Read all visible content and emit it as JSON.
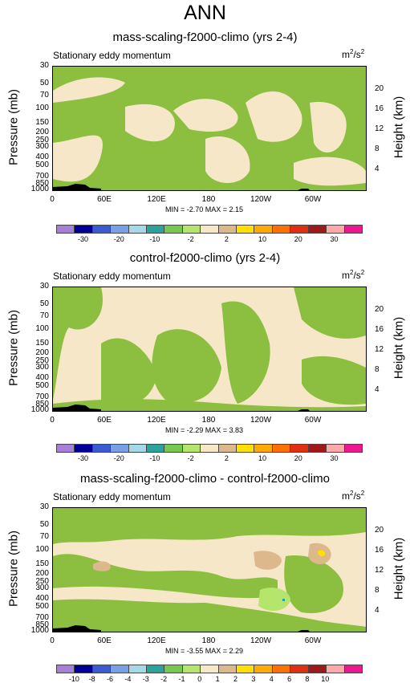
{
  "main_title": "ANN",
  "panels": [
    {
      "title": "mass-scaling-f2000-climo (yrs 2-4)",
      "left_label": "Stationary eddy momentum",
      "units_base": "m",
      "units_sup1": "2",
      "units_mid": "/s",
      "units_sup2": "2",
      "minmax": "MIN = -2.70  MAX =  2.15",
      "ylabel": "Pressure (mb)",
      "ylabel_right": "Height (km)",
      "pressure_ticks": [
        "30",
        "50",
        "70",
        "100",
        "150",
        "200",
        "250",
        "300",
        "400",
        "500",
        "700",
        "850",
        "1000"
      ],
      "height_ticks": [
        "20",
        "16",
        "12",
        "8",
        "4"
      ],
      "lon_ticks": [
        "0",
        "60E",
        "120E",
        "180",
        "120W",
        "60W"
      ],
      "colorbar_labels": [
        "-30",
        "-20",
        "-10",
        "-2",
        "2",
        "10",
        "20",
        "30"
      ]
    },
    {
      "title": "control-f2000-climo (yrs 2-4)",
      "left_label": "Stationary eddy momentum",
      "units_base": "m",
      "units_sup1": "2",
      "units_mid": "/s",
      "units_sup2": "2",
      "minmax": "MIN = -2.29  MAX =  3.83",
      "ylabel": "Pressure (mb)",
      "ylabel_right": "Height (km)",
      "pressure_ticks": [
        "30",
        "50",
        "70",
        "100",
        "150",
        "200",
        "250",
        "300",
        "400",
        "500",
        "700",
        "850",
        "1000"
      ],
      "height_ticks": [
        "20",
        "16",
        "12",
        "8",
        "4"
      ],
      "lon_ticks": [
        "0",
        "60E",
        "120E",
        "180",
        "120W",
        "60W"
      ],
      "colorbar_labels": [
        "-30",
        "-20",
        "-10",
        "-2",
        "2",
        "10",
        "20",
        "30"
      ]
    },
    {
      "title": "mass-scaling-f2000-climo - control-f2000-climo",
      "left_label": "Stationary eddy momentum",
      "units_base": "m",
      "units_sup1": "2",
      "units_mid": "/s",
      "units_sup2": "2",
      "minmax": "MIN = -3.55  MAX =  2.29",
      "ylabel": "Pressure (mb)",
      "ylabel_right": "Height (km)",
      "pressure_ticks": [
        "30",
        "50",
        "70",
        "100",
        "150",
        "200",
        "250",
        "300",
        "400",
        "500",
        "700",
        "850",
        "1000"
      ],
      "height_ticks": [
        "20",
        "16",
        "12",
        "8",
        "4"
      ],
      "lon_ticks": [
        "0",
        "60E",
        "120E",
        "180",
        "120W",
        "60W"
      ],
      "colorbar_labels": [
        "-10",
        "-8",
        "-6",
        "-4",
        "-3",
        "-2",
        "-1",
        "0",
        "1",
        "2",
        "3",
        "4",
        "6",
        "8",
        "10"
      ]
    }
  ],
  "colors": {
    "cbar_test": [
      "#a57fd8",
      "#000099",
      "#3c5ad2",
      "#78a0e6",
      "#a6d9e6",
      "#2aa49a",
      "#78c850",
      "#b6e56e",
      "#f6e7c8",
      "#ddb88c",
      "#ffe000",
      "#ffaa00",
      "#ff7000",
      "#e03010",
      "#a01818",
      "#ffaaaa",
      "#f01890"
    ],
    "cbar_diff": [
      "#a57fd8",
      "#000099",
      "#3c5ad2",
      "#78a0e6",
      "#a6d9e6",
      "#2aa49a",
      "#78c850",
      "#b6e56e",
      "#f6e7c8",
      "#ddb88c",
      "#ffe000",
      "#ffaa00",
      "#ff7000",
      "#e03010",
      "#a01818",
      "#ffaaaa",
      "#f01890"
    ],
    "green": "#8cbf3f",
    "beige": "#f6e7c8"
  },
  "chart_data": [
    {
      "type": "heatmap",
      "title": "mass-scaling-f2000-climo (yrs 2-4)",
      "xlabel": "",
      "ylabel": "Pressure (mb)",
      "y_right_label": "Height (km)",
      "xlim": [
        0,
        360
      ],
      "ylim_pressure_mb": [
        1000,
        30
      ],
      "levels": [
        -30,
        -20,
        -10,
        -2,
        2,
        10,
        20,
        30
      ],
      "min": -2.7,
      "max": 2.15
    },
    {
      "type": "heatmap",
      "title": "control-f2000-climo (yrs 2-4)",
      "xlabel": "",
      "ylabel": "Pressure (mb)",
      "y_right_label": "Height (km)",
      "xlim": [
        0,
        360
      ],
      "ylim_pressure_mb": [
        1000,
        30
      ],
      "levels": [
        -30,
        -20,
        -10,
        -2,
        2,
        10,
        20,
        30
      ],
      "min": -2.29,
      "max": 3.83
    },
    {
      "type": "heatmap",
      "title": "mass-scaling-f2000-climo - control-f2000-climo",
      "xlabel": "",
      "ylabel": "Pressure (mb)",
      "y_right_label": "Height (km)",
      "xlim": [
        0,
        360
      ],
      "ylim_pressure_mb": [
        1000,
        30
      ],
      "levels": [
        -10,
        -8,
        -6,
        -4,
        -3,
        -2,
        -1,
        0,
        1,
        2,
        3,
        4,
        6,
        8,
        10
      ],
      "min": -3.55,
      "max": 2.29
    }
  ]
}
